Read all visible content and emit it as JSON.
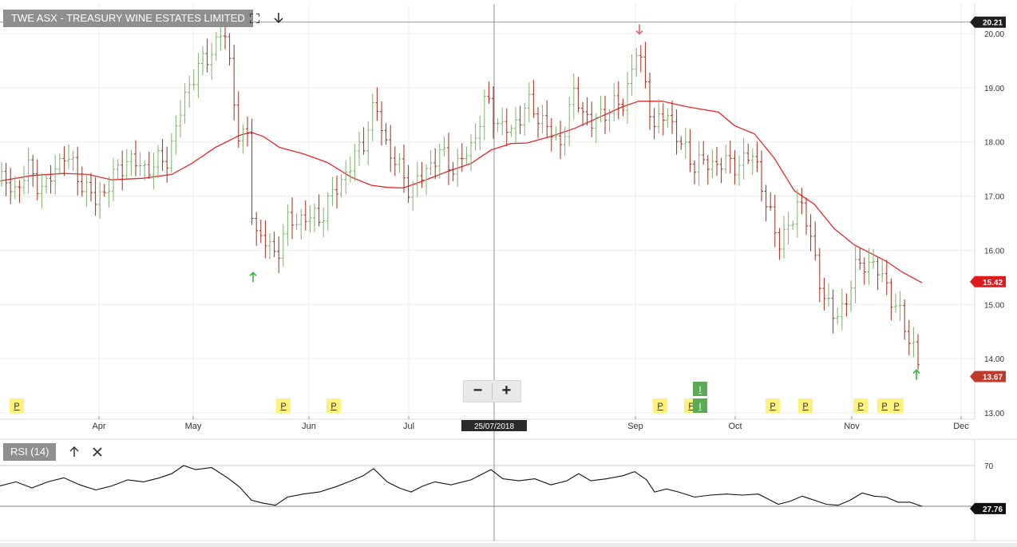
{
  "header": {
    "title": "TWE ASX - TREASURY WINE ESTATES LIMITED"
  },
  "toolbar": {
    "zoom_out_label": "−",
    "zoom_in_label": "+"
  },
  "rsi_panel": {
    "label": "RSI (14)"
  },
  "colors": {
    "up_bar": "#7fb06a",
    "down_bar": "#a32b1a",
    "moving_average": "#e8262a",
    "last_price_flag": "#c0392b",
    "grid": "#ececec",
    "signal_up": "#2db82d",
    "signal_down": "#e0606a",
    "p_marker": "#fff27a"
  },
  "chart_data": [
    {
      "type": "ohlc",
      "title": "TWE ASX - TREASURY WINE ESTATES LIMITED",
      "x_tick_labels": [
        "Apr",
        "May",
        "Jun",
        "Jul",
        "Sep",
        "Oct",
        "Nov",
        "Dec"
      ],
      "y_ticks": [
        13,
        14,
        15,
        16,
        17,
        18,
        19,
        20
      ],
      "ylim": [
        12.93,
        20.47
      ],
      "price_flags": [
        {
          "label": "20.21",
          "value": 20.21,
          "kind": "high"
        },
        {
          "label": "15.42",
          "value": 15.42,
          "kind": "moving_average"
        },
        {
          "label": "13.67",
          "value": 13.67,
          "kind": "last"
        }
      ],
      "crosshair_date": "25/07/2018",
      "moving_average_trend": "rises from about 17.3 in March to 18.75 in late August, then falls to 15.42 in late November",
      "price_trend": "about 17.2 in March, peak about 20.2 in May, dip to 15.6 in mid-May, up to 20.0 in late August, then decline to 13.67 in late November",
      "signal_arrows": [
        {
          "direction": "up",
          "value": 15.5,
          "date": "mid-May"
        },
        {
          "direction": "down",
          "value": 20.08,
          "date": "late August"
        },
        {
          "direction": "up",
          "value": 13.7,
          "date": "late November"
        }
      ],
      "event_markers": [
        {
          "label": "P"
        },
        {
          "label": "P"
        },
        {
          "label": "P"
        },
        {
          "label": "P"
        },
        {
          "label": "P"
        },
        {
          "label": "I"
        },
        {
          "label": "I"
        },
        {
          "label": "P"
        },
        {
          "label": "P"
        },
        {
          "label": "P"
        },
        {
          "label": "P"
        },
        {
          "label": "P"
        }
      ]
    },
    {
      "type": "line",
      "title": "RSI (14)",
      "y_ticks": [
        70
      ],
      "reference_lines": [
        70,
        30
      ],
      "last_value_label": "27.76",
      "last_value": 27.76
    }
  ]
}
